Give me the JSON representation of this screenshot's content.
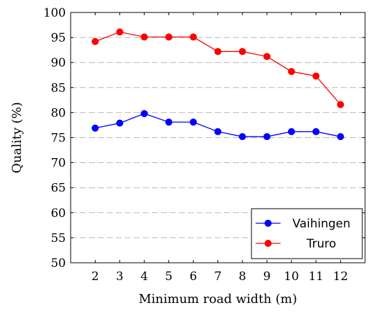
{
  "chart_data": {
    "type": "line",
    "title": "",
    "xlabel": "Minimum road width (m)",
    "ylabel": "Quality (%)",
    "x": [
      2,
      3,
      4,
      5,
      6,
      7,
      8,
      9,
      10,
      11,
      12
    ],
    "xlim": [
      1,
      13
    ],
    "ylim": [
      50,
      100
    ],
    "xticks": [
      "2",
      "3",
      "4",
      "5",
      "6",
      "7",
      "8",
      "9",
      "10",
      "11",
      "12"
    ],
    "yticks": [
      "50",
      "55",
      "60",
      "65",
      "70",
      "75",
      "80",
      "85",
      "90",
      "95",
      "100"
    ],
    "grid": "horizontal dashed",
    "legend_position": "bottom-right",
    "series": [
      {
        "name": "Vaihingen",
        "color": "#0000ff",
        "marker": "circle",
        "values": [
          76.9,
          77.9,
          79.8,
          78.1,
          78.1,
          76.2,
          75.2,
          75.2,
          76.2,
          76.2,
          75.2
        ]
      },
      {
        "name": "Truro",
        "color": "#ff0000",
        "marker": "circle",
        "values": [
          94.2,
          96.1,
          95.1,
          95.1,
          95.1,
          92.2,
          92.2,
          91.2,
          88.2,
          87.3,
          81.6
        ]
      }
    ]
  }
}
